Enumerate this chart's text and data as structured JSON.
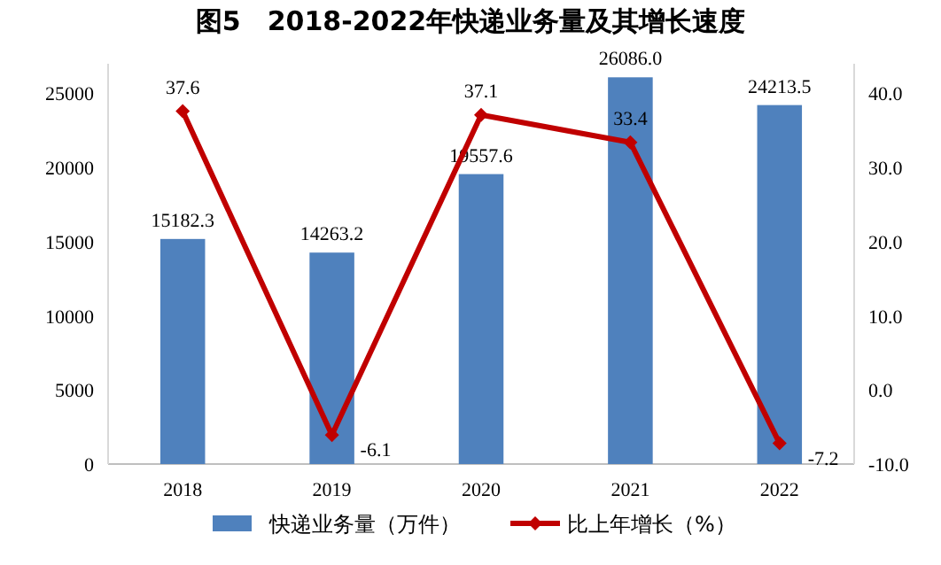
{
  "chart_data": {
    "type": "bar",
    "title": "图5　2018-2022年快递业务量及其增长速度",
    "categories": [
      "2018",
      "2019",
      "2020",
      "2021",
      "2022"
    ],
    "series": [
      {
        "name": "快递业务量（万件）",
        "color": "#4f81bd",
        "values": [
          15182.3,
          14263.2,
          19557.6,
          26086.0,
          24213.5
        ],
        "value_labels": [
          "15182.3",
          "14263.2",
          "19557.6",
          "26086.0",
          "24213.5"
        ]
      },
      {
        "name": "比上年增长（%）",
        "type": "line",
        "axis": "y2",
        "color": "#c00000",
        "marker": "diamond",
        "values": [
          37.6,
          -6.1,
          37.1,
          33.4,
          -7.2
        ]
      }
    ],
    "ylim": [
      0,
      27000
    ],
    "yticks": [
      0,
      5000,
      10000,
      15000,
      20000,
      25000
    ],
    "y2lim": [
      -10,
      44
    ],
    "y2ticks": [
      {
        "value": -10,
        "label": "-10.0"
      },
      {
        "value": 0,
        "label": "0.0"
      },
      {
        "value": 10,
        "label": "10.0"
      },
      {
        "value": 20,
        "label": "20.0"
      },
      {
        "value": 30,
        "label": "30.0"
      },
      {
        "value": 40,
        "label": "40.0"
      }
    ],
    "data_labels": true,
    "legend": "bottom",
    "grid": false
  }
}
